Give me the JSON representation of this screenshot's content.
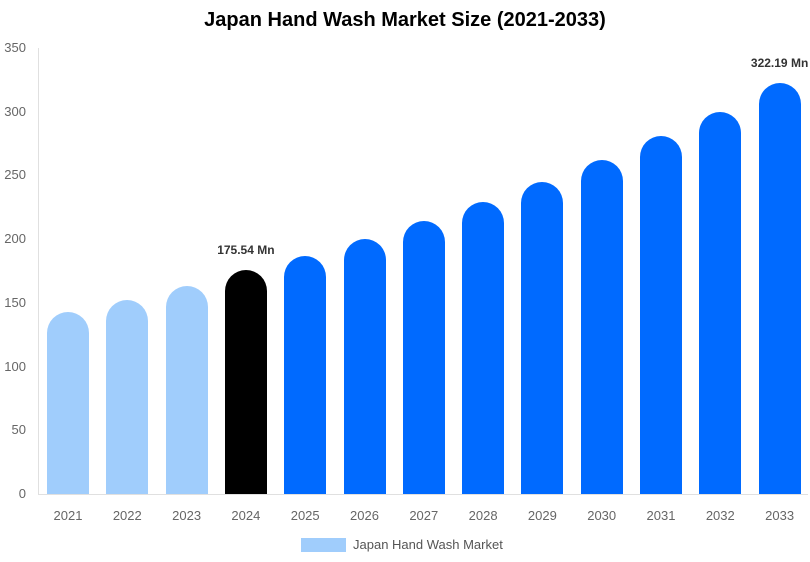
{
  "chart_data": {
    "type": "bar",
    "title": "Japan Hand Wash Market Size (2021-2033)",
    "xlabel": "",
    "ylabel": "",
    "ylim": [
      0,
      350
    ],
    "yticks": [
      0,
      50,
      100,
      150,
      200,
      250,
      300,
      350
    ],
    "grid": false,
    "legend": {
      "position": "bottom",
      "entries": [
        "Japan Hand Wash Market"
      ]
    },
    "categories": [
      "2021",
      "2022",
      "2023",
      "2024",
      "2025",
      "2026",
      "2027",
      "2028",
      "2029",
      "2030",
      "2031",
      "2032",
      "2033"
    ],
    "values": [
      143,
      152,
      163,
      175.54,
      187,
      200,
      214,
      229,
      245,
      262,
      281,
      300,
      322.19
    ],
    "colors": [
      "#a0cdfc",
      "#a0cdfc",
      "#a0cdfc",
      "#000000",
      "#006aff",
      "#006aff",
      "#006aff",
      "#006aff",
      "#006aff",
      "#006aff",
      "#006aff",
      "#006aff",
      "#006aff"
    ],
    "annotations": [
      {
        "category": "2024",
        "text": "175.54 Mn"
      },
      {
        "category": "2033",
        "text": "322.19 Mn"
      }
    ]
  }
}
